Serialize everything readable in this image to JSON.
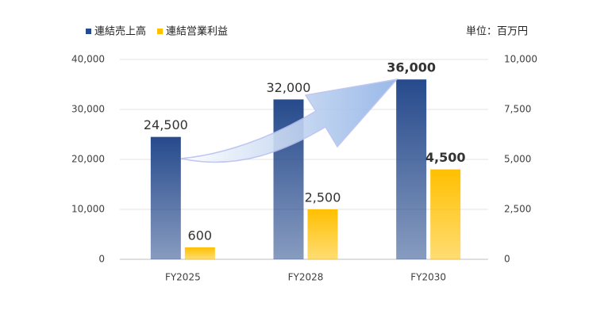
{
  "chart_data": {
    "type": "bar",
    "annotation": "単位：百万円",
    "categories": [
      "FY2025",
      "FY2028",
      "FY2030"
    ],
    "series": [
      {
        "name": "連結売上高",
        "color": "#264a8c",
        "values": [
          24500,
          32000,
          36000
        ],
        "value_labels": [
          "24,500",
          "32,000",
          "36,000"
        ]
      },
      {
        "name": "連結営業利益",
        "color": "#ffc000",
        "axis": "y2",
        "values": [
          600,
          2500,
          4500
        ],
        "value_labels": [
          "600",
          "2,500",
          "4,500"
        ]
      }
    ],
    "ylim": [
      0,
      40000
    ],
    "yticks": [
      0,
      {
        "value": 10000,
        "label": "10,000"
      },
      {
        "value": 20000,
        "label": "20,000"
      },
      {
        "value": 30000,
        "label": "30,000"
      },
      {
        "value": 40000,
        "label": "40,000"
      }
    ],
    "y2lim": [
      0,
      10000
    ],
    "y2ticks": [
      0,
      {
        "value": 2500,
        "label": "2,500"
      },
      {
        "value": 5000,
        "label": "5,000"
      },
      {
        "value": 7500,
        "label": "7,500"
      },
      {
        "value": 10000,
        "label": "10,000"
      }
    ],
    "grid": true
  }
}
